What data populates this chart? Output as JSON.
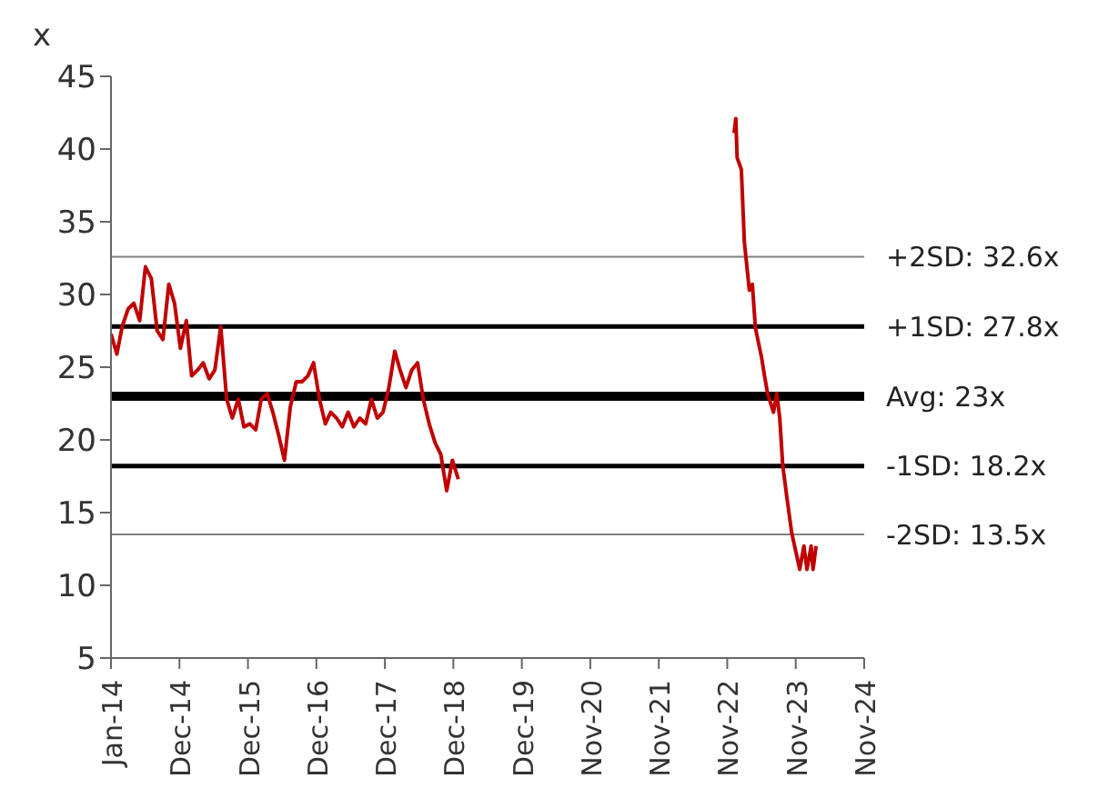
{
  "chart_data": {
    "type": "line",
    "ylabel": "x",
    "x": [
      "2014-01",
      "2014-02",
      "2014-03",
      "2014-04",
      "2014-05",
      "2014-06",
      "2014-07",
      "2014-08",
      "2014-09",
      "2014-10",
      "2014-11",
      "2014-12",
      "2015-01",
      "2015-02",
      "2015-03",
      "2015-04",
      "2015-05",
      "2015-06",
      "2015-07",
      "2015-08",
      "2015-09",
      "2015-10",
      "2015-11",
      "2015-12",
      "2016-01",
      "2016-02",
      "2016-03",
      "2016-04",
      "2016-05",
      "2016-06",
      "2016-07",
      "2016-08",
      "2016-09",
      "2016-10",
      "2016-11",
      "2016-12",
      "2017-01",
      "2017-02",
      "2017-03",
      "2017-04",
      "2017-05",
      "2017-06",
      "2017-07",
      "2017-08",
      "2017-09",
      "2017-10",
      "2017-11",
      "2017-12",
      "2018-01",
      "2018-02",
      "2018-03",
      "2018-04",
      "2018-05",
      "2018-06",
      "2018-07",
      "2018-08",
      "2018-09",
      "2018-10",
      "2018-11",
      "2018-12",
      "2019-01",
      "2020-12-01",
      "2022-12-21",
      "2022-12-30",
      "2023-01-06",
      "2023-01-28",
      "2023-02-13",
      "2023-03-11",
      "2023-03-27",
      "2023-04-12",
      "2023-05-14",
      "2023-05-30",
      "2023-06-15",
      "2023-07-16",
      "2023-08-02",
      "2023-08-18",
      "2023-09-03",
      "2023-09-28",
      "2023-10-20",
      "2023-11-11",
      "2023-12-01",
      "2023-12-23",
      "2024-01-08",
      "2024-01-30",
      "2024-02-09",
      "2024-02-25"
    ],
    "series": [
      {
        "color": "#c00000",
        "values": [
          27.3,
          25.9,
          27.8,
          29.0,
          29.4,
          28.2,
          31.9,
          31.1,
          27.5,
          26.9,
          30.7,
          29.4,
          26.3,
          28.2,
          24.4,
          24.8,
          25.3,
          24.2,
          24.8,
          27.8,
          22.8,
          21.5,
          22.8,
          20.9,
          21.1,
          20.7,
          22.8,
          23.2,
          21.9,
          20.3,
          18.6,
          22.3,
          24.0,
          24.0,
          24.4,
          25.3,
          22.8,
          21.1,
          21.9,
          21.5,
          20.9,
          21.9,
          20.9,
          21.5,
          21.1,
          22.8,
          21.5,
          21.9,
          23.6,
          26.1,
          24.8,
          23.6,
          24.8,
          25.3,
          22.8,
          21.1,
          19.8,
          19.0,
          16.5,
          18.6,
          17.3,
          null,
          41.1,
          42.1,
          39.4,
          38.6,
          33.6,
          30.3,
          30.7,
          27.7,
          25.7,
          24.4,
          23.2,
          21.9,
          23.2,
          21.5,
          18.2,
          15.7,
          13.6,
          12.3,
          11.1,
          12.7,
          11.1,
          12.7,
          11.1,
          12.7
        ]
      }
    ],
    "xlim": [
      "2014-01-01",
      "2024-11-04"
    ],
    "xticks": [
      {
        "value": "2014-01-01",
        "label": "Jan-14"
      },
      {
        "value": "2014-12-27",
        "label": "Dec-14"
      },
      {
        "value": "2015-12-22",
        "label": "Dec-15"
      },
      {
        "value": "2016-12-16",
        "label": "Dec-16"
      },
      {
        "value": "2017-12-11",
        "label": "Dec-17"
      },
      {
        "value": "2018-12-06",
        "label": "Dec-18"
      },
      {
        "value": "2019-12-01",
        "label": "Dec-19"
      },
      {
        "value": "2020-11-25",
        "label": "Nov-20"
      },
      {
        "value": "2021-11-20",
        "label": "Nov-21"
      },
      {
        "value": "2022-11-15",
        "label": "Nov-22"
      },
      {
        "value": "2023-11-10",
        "label": "Nov-23"
      },
      {
        "value": "2024-11-04",
        "label": "Nov-24"
      }
    ],
    "ylim": [
      5,
      45
    ],
    "yticks": [
      5,
      10,
      15,
      20,
      25,
      30,
      35,
      40,
      45
    ],
    "ref_lines": [
      {
        "axis": "y",
        "value": 32.6,
        "label": "+2SD: 32.6x",
        "color": "#808080"
      },
      {
        "axis": "y",
        "value": 27.8,
        "label": "+1SD: 27.8x",
        "color": "#000000"
      },
      {
        "axis": "y",
        "value": 23,
        "label": "Avg: 23x",
        "color": "#000000"
      },
      {
        "axis": "y",
        "value": 18.2,
        "label": "-1SD: 18.2x",
        "color": "#000000"
      },
      {
        "axis": "y",
        "value": 13.5,
        "label": "-2SD: 13.5x",
        "color": "#808080"
      }
    ],
    "grid": false,
    "legend": false,
    "marker": "none",
    "line_style": "solid"
  }
}
